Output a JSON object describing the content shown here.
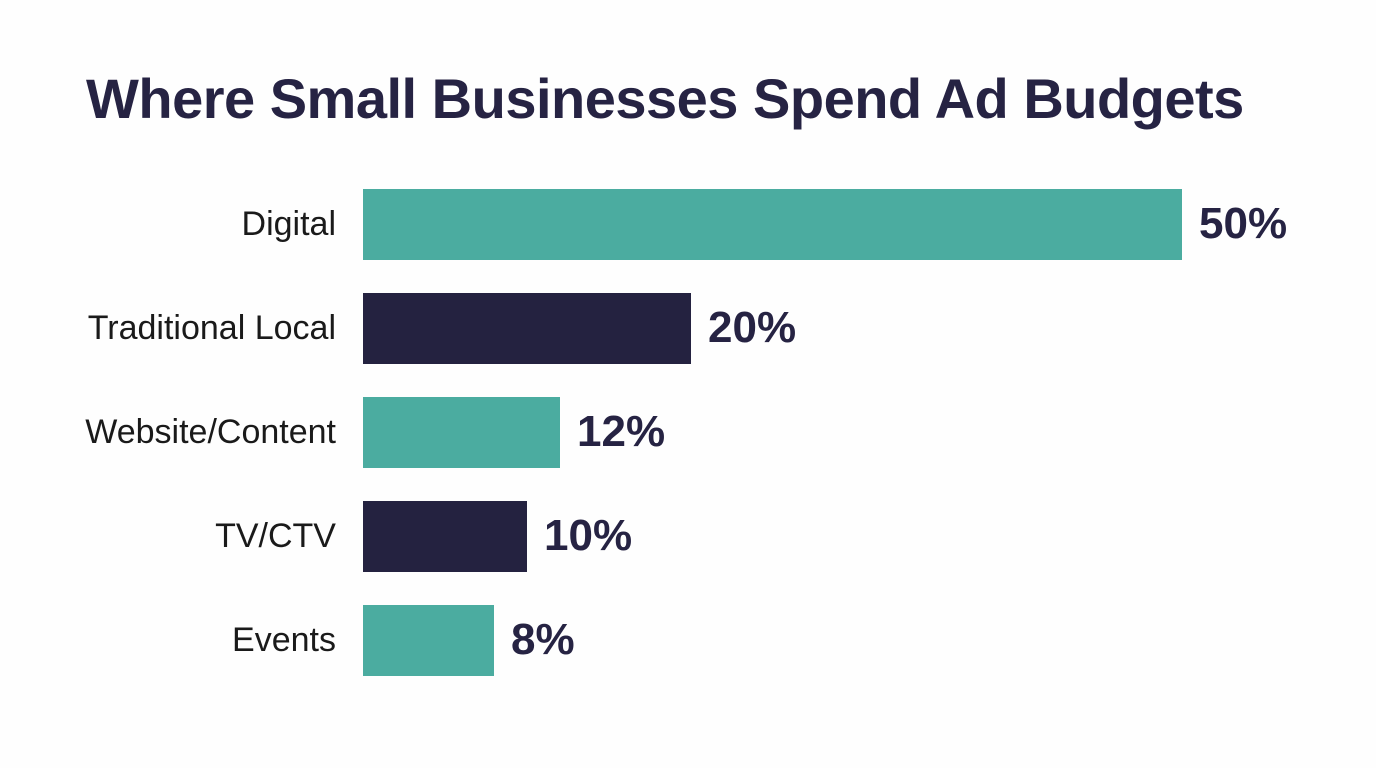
{
  "title": "Where Small Businesses Spend Ad Budgets",
  "colors": {
    "teal": "#4BACA0",
    "navy": "#242240",
    "title_text": "#262343",
    "label_text": "#1A1A1A",
    "background": "#FEFEFE"
  },
  "chart_data": {
    "type": "bar",
    "orientation": "horizontal",
    "title": "Where Small Businesses Spend Ad Budgets",
    "categories": [
      "Digital",
      "Traditional Local",
      "Website/Content",
      "TV/CTV",
      "Events"
    ],
    "values": [
      50,
      20,
      12,
      10,
      8
    ],
    "value_labels": [
      "50%",
      "20%",
      "12%",
      "10%",
      "8%"
    ],
    "bar_colors": [
      "#4BACA0",
      "#242240",
      "#4BACA0",
      "#242240",
      "#4BACA0"
    ],
    "xlabel": "",
    "ylabel": "",
    "xlim": [
      0,
      50
    ],
    "grid": false,
    "legend": false,
    "value_label_position": "right-of-bar",
    "category_label_position": "left-of-bar"
  }
}
